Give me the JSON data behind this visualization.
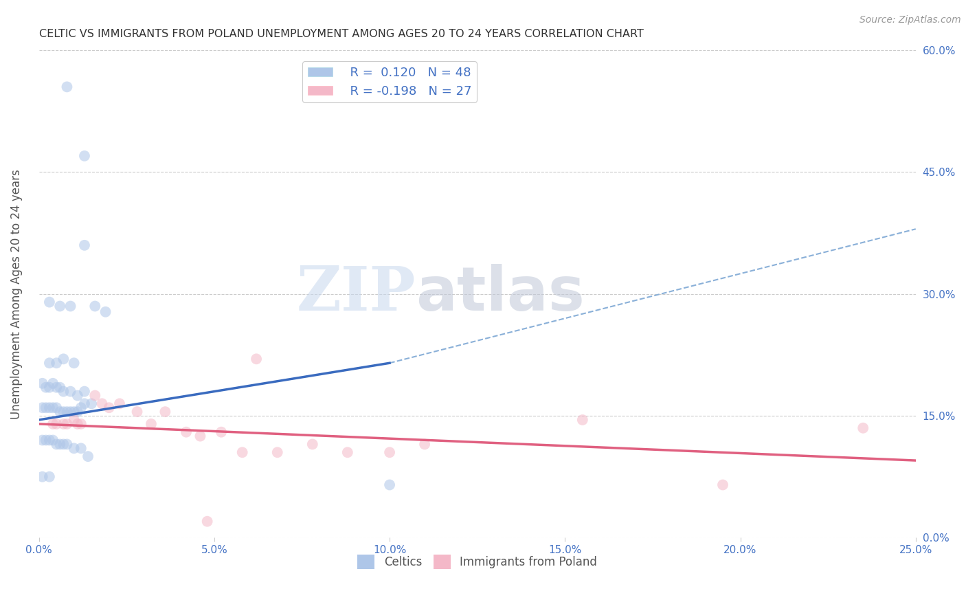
{
  "title": "CELTIC VS IMMIGRANTS FROM POLAND UNEMPLOYMENT AMONG AGES 20 TO 24 YEARS CORRELATION CHART",
  "source": "Source: ZipAtlas.com",
  "ylabel": "Unemployment Among Ages 20 to 24 years",
  "xlabel_ticks": [
    "0.0%",
    "5.0%",
    "10.0%",
    "15.0%",
    "20.0%",
    "25.0%"
  ],
  "ylabel_ticks": [
    "0.0%",
    "15.0%",
    "30.0%",
    "45.0%",
    "60.0%"
  ],
  "xlim": [
    0.0,
    0.25
  ],
  "ylim": [
    0.0,
    0.6
  ],
  "watermark_zip": "ZIP",
  "watermark_atlas": "atlas",
  "celtics_scatter": [
    [
      0.008,
      0.555
    ],
    [
      0.013,
      0.47
    ],
    [
      0.013,
      0.36
    ],
    [
      0.003,
      0.29
    ],
    [
      0.006,
      0.285
    ],
    [
      0.009,
      0.285
    ],
    [
      0.016,
      0.285
    ],
    [
      0.019,
      0.278
    ],
    [
      0.003,
      0.215
    ],
    [
      0.005,
      0.215
    ],
    [
      0.007,
      0.22
    ],
    [
      0.01,
      0.215
    ],
    [
      0.001,
      0.19
    ],
    [
      0.002,
      0.185
    ],
    [
      0.003,
      0.185
    ],
    [
      0.004,
      0.19
    ],
    [
      0.005,
      0.185
    ],
    [
      0.006,
      0.185
    ],
    [
      0.007,
      0.18
    ],
    [
      0.009,
      0.18
    ],
    [
      0.011,
      0.175
    ],
    [
      0.013,
      0.18
    ],
    [
      0.001,
      0.16
    ],
    [
      0.002,
      0.16
    ],
    [
      0.003,
      0.16
    ],
    [
      0.004,
      0.16
    ],
    [
      0.005,
      0.16
    ],
    [
      0.006,
      0.155
    ],
    [
      0.007,
      0.155
    ],
    [
      0.008,
      0.155
    ],
    [
      0.009,
      0.155
    ],
    [
      0.01,
      0.155
    ],
    [
      0.011,
      0.155
    ],
    [
      0.012,
      0.16
    ],
    [
      0.013,
      0.165
    ],
    [
      0.015,
      0.165
    ],
    [
      0.001,
      0.12
    ],
    [
      0.002,
      0.12
    ],
    [
      0.003,
      0.12
    ],
    [
      0.004,
      0.12
    ],
    [
      0.005,
      0.115
    ],
    [
      0.006,
      0.115
    ],
    [
      0.007,
      0.115
    ],
    [
      0.008,
      0.115
    ],
    [
      0.01,
      0.11
    ],
    [
      0.012,
      0.11
    ],
    [
      0.014,
      0.1
    ],
    [
      0.001,
      0.075
    ],
    [
      0.003,
      0.075
    ],
    [
      0.1,
      0.065
    ]
  ],
  "poland_scatter": [
    [
      0.004,
      0.14
    ],
    [
      0.005,
      0.14
    ],
    [
      0.007,
      0.14
    ],
    [
      0.008,
      0.14
    ],
    [
      0.01,
      0.145
    ],
    [
      0.011,
      0.14
    ],
    [
      0.012,
      0.14
    ],
    [
      0.016,
      0.175
    ],
    [
      0.018,
      0.165
    ],
    [
      0.02,
      0.16
    ],
    [
      0.023,
      0.165
    ],
    [
      0.028,
      0.155
    ],
    [
      0.032,
      0.14
    ],
    [
      0.036,
      0.155
    ],
    [
      0.042,
      0.13
    ],
    [
      0.046,
      0.125
    ],
    [
      0.052,
      0.13
    ],
    [
      0.058,
      0.105
    ],
    [
      0.062,
      0.22
    ],
    [
      0.068,
      0.105
    ],
    [
      0.078,
      0.115
    ],
    [
      0.088,
      0.105
    ],
    [
      0.11,
      0.115
    ],
    [
      0.155,
      0.145
    ],
    [
      0.195,
      0.065
    ],
    [
      0.235,
      0.135
    ],
    [
      0.048,
      0.02
    ],
    [
      0.1,
      0.105
    ]
  ],
  "celtics_line": {
    "x0": 0.0,
    "y0": 0.145,
    "x1": 0.1,
    "y1": 0.215
  },
  "celtics_line_dashed": {
    "x0": 0.1,
    "y0": 0.215,
    "x1": 0.25,
    "y1": 0.38
  },
  "poland_line": {
    "x0": 0.0,
    "y0": 0.14,
    "x1": 0.25,
    "y1": 0.095
  },
  "background_color": "#ffffff",
  "scatter_alpha": 0.55,
  "scatter_size": 130,
  "celtics_color": "#aec6e8",
  "poland_color": "#f4b8c8",
  "line_blue": "#3a6bbf",
  "line_pink": "#e06080",
  "dashed_color": "#8ab0d8",
  "grid_color": "#cccccc",
  "title_color": "#333333",
  "axis_label_color": "#555555",
  "tick_label_color": "#4472c4"
}
